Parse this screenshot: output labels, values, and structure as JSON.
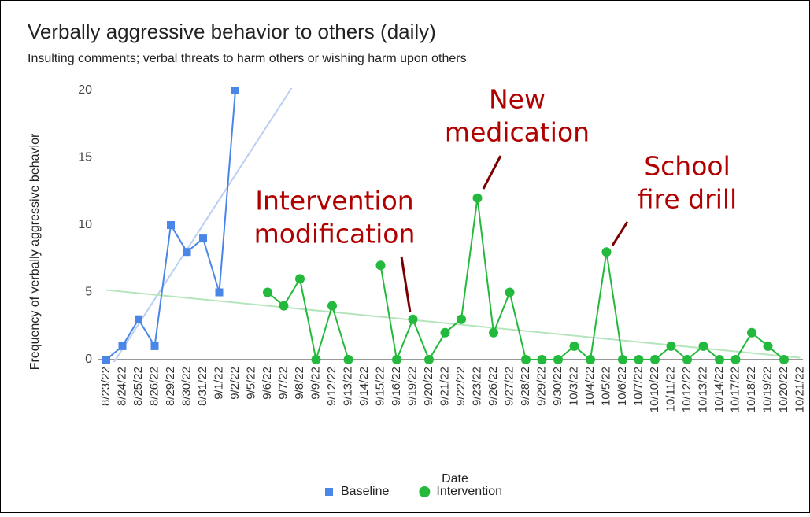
{
  "chart_data": {
    "type": "line",
    "title": "Verbally aggressive behavior to others (daily)",
    "subtitle": "Insulting comments; verbal threats to harm others or wishing harm upon others",
    "x_label": "Date",
    "y_label": "Frequency of verbally aggressive behavior",
    "categories": [
      "8/23/22",
      "8/24/22",
      "8/25/22",
      "8/26/22",
      "8/29/22",
      "8/30/22",
      "8/31/22",
      "9/1/22",
      "9/2/22",
      "9/5/22",
      "9/6/22",
      "9/7/22",
      "9/8/22",
      "9/9/22",
      "9/12/22",
      "9/13/22",
      "9/14/22",
      "9/15/22",
      "9/16/22",
      "9/19/22",
      "9/20/22",
      "9/21/22",
      "9/22/22",
      "9/23/22",
      "9/26/22",
      "9/27/22",
      "9/28/22",
      "9/29/22",
      "9/30/22",
      "10/3/22",
      "10/4/22",
      "10/5/22",
      "10/6/22",
      "10/7/22",
      "10/10/22",
      "10/11/22",
      "10/12/22",
      "10/13/22",
      "10/14/22",
      "10/17/22",
      "10/18/22",
      "10/19/22",
      "10/20/22",
      "10/21/22"
    ],
    "series": [
      {
        "name": "Baseline",
        "color": "#4a86e8",
        "trend_color": "#b9cff3",
        "marker": "square",
        "values": [
          0,
          1,
          3,
          1,
          10,
          8,
          9,
          5,
          20,
          null,
          null,
          null,
          null,
          null,
          null,
          null,
          null,
          null,
          null,
          null,
          null,
          null,
          null,
          null,
          null,
          null,
          null,
          null,
          null,
          null,
          null,
          null,
          null,
          null,
          null,
          null,
          null,
          null,
          null,
          null,
          null,
          null,
          null,
          null
        ]
      },
      {
        "name": "Intervention",
        "color": "#22b93c",
        "trend_color": "#b5e5bc",
        "marker": "circle",
        "values": [
          null,
          null,
          null,
          null,
          null,
          null,
          null,
          null,
          null,
          null,
          5,
          4,
          6,
          0,
          4,
          0,
          null,
          7,
          0,
          3,
          0,
          2,
          3,
          12,
          2,
          5,
          0,
          0,
          0,
          1,
          0,
          8,
          0,
          0,
          0,
          1,
          0,
          1,
          0,
          0,
          2,
          1,
          0,
          null
        ]
      }
    ],
    "ylim": [
      0,
      20
    ],
    "yticks": [
      0,
      5,
      10,
      15,
      20
    ],
    "grid": false,
    "trendline": true,
    "legend": "bottom",
    "annotations": [
      {
        "text": [
          "Intervention",
          "modification"
        ],
        "color": "#b00000"
      },
      {
        "text": [
          "New",
          "medication"
        ],
        "color": "#b00000"
      },
      {
        "text": [
          "School",
          "fire drill"
        ],
        "color": "#b00000"
      }
    ]
  }
}
